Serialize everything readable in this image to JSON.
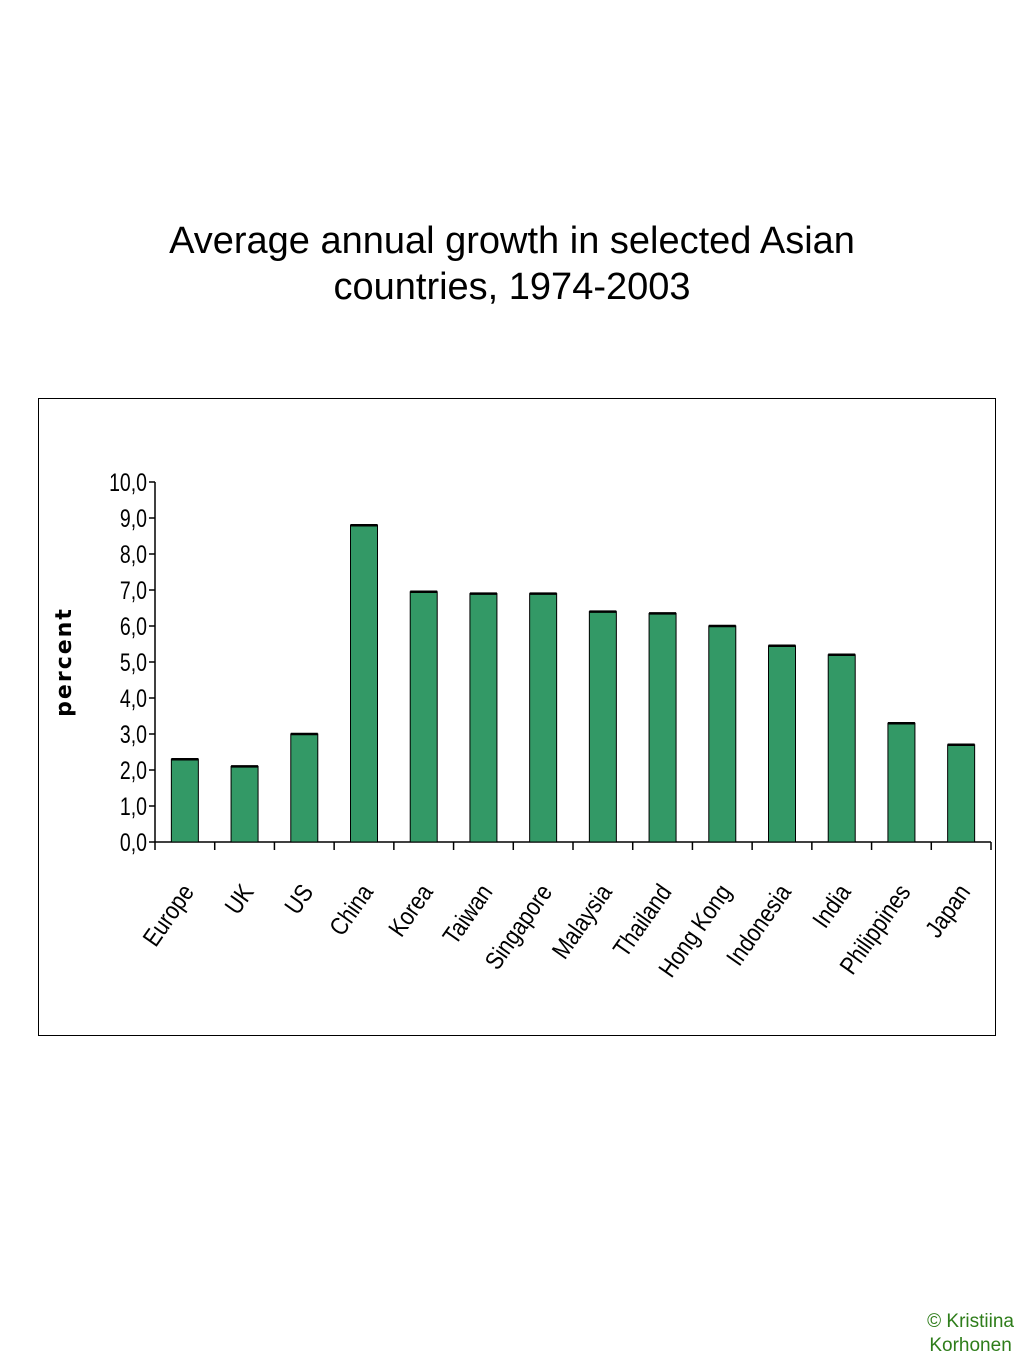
{
  "slide": {
    "title_line1": "Average annual growth in selected Asian",
    "title_line2": "countries, 1974-2003",
    "copyright_line1": "© Kristiina",
    "copyright_line2": "Korhonen",
    "copyright_color": "#2e7d1a"
  },
  "chart_data": {
    "type": "bar",
    "title": "",
    "xlabel": "",
    "ylabel": "percent",
    "ylim": [
      0,
      10
    ],
    "yticks": [
      "0,0",
      "1,0",
      "2,0",
      "3,0",
      "4,0",
      "5,0",
      "6,0",
      "7,0",
      "8,0",
      "9,0",
      "10,0"
    ],
    "categories": [
      "Europe",
      "UK",
      "US",
      "China",
      "Korea",
      "Taiwan",
      "Singapore",
      "Malaysia",
      "Thailand",
      "Hong Kong",
      "Indonesia",
      "India",
      "Philippines",
      "Japan"
    ],
    "values": [
      2.3,
      2.1,
      3.0,
      8.8,
      6.95,
      6.9,
      6.9,
      6.4,
      6.35,
      6.0,
      5.45,
      5.2,
      3.3,
      2.7
    ],
    "grid": false,
    "legend": "none",
    "bar_color": "#339966",
    "bar_edge_color": "#000000"
  }
}
